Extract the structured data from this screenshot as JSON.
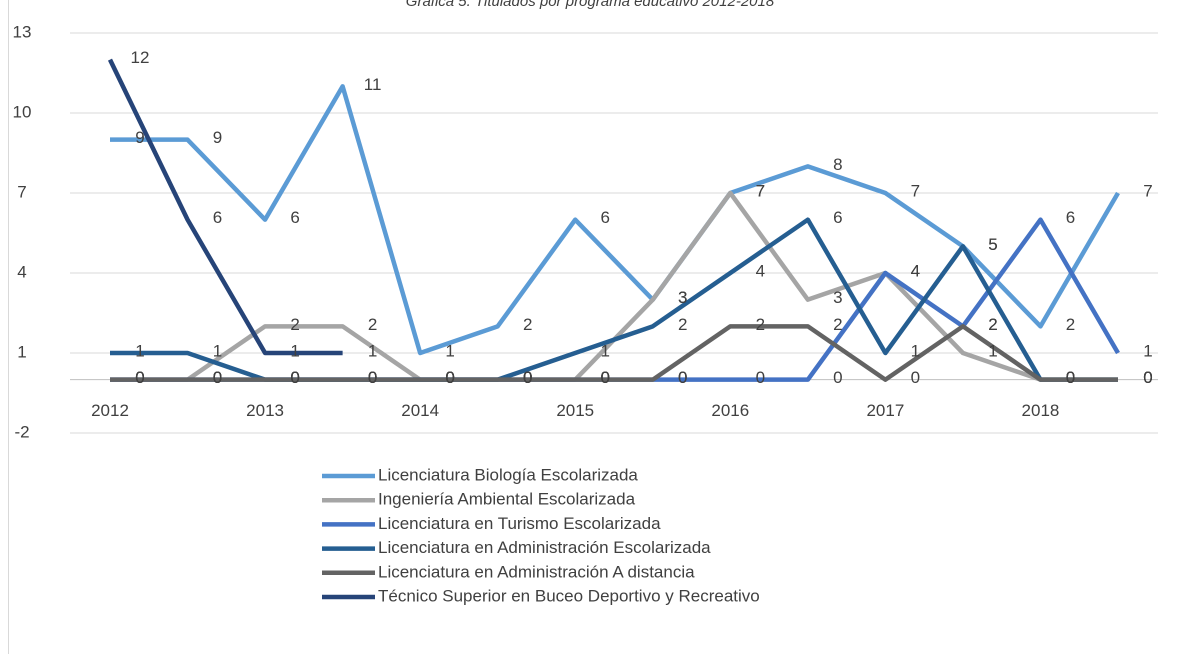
{
  "chart_data": {
    "type": "line",
    "title": "Gráfica 5.  Titulados por programa educativo 2012-2018",
    "categories": [
      "2012",
      null,
      "2013",
      null,
      "2014",
      null,
      "2015",
      null,
      "2016",
      null,
      "2017",
      null,
      "2018",
      null
    ],
    "ylim": [
      -2,
      13
    ],
    "yticks": [
      -2,
      1,
      4,
      7,
      10,
      13
    ],
    "grid": true,
    "legend": "bottom",
    "series": [
      {
        "name": "Licenciatura Biología  Escolarizada",
        "color": "#5b9bd5",
        "values": [
          9,
          9,
          6,
          11,
          1,
          2,
          6,
          3,
          7,
          8,
          7,
          5,
          2,
          7
        ]
      },
      {
        "name": "Ingeniería Ambiental  Escolarizada",
        "color": "#a5a5a5",
        "values": [
          0,
          0,
          2,
          2,
          0,
          0,
          0,
          3,
          7,
          3,
          4,
          1,
          0,
          0
        ]
      },
      {
        "name": "Licenciatura en Turismo  Escolarizada",
        "color": "#4472c4",
        "values": [
          0,
          0,
          0,
          0,
          0,
          0,
          0,
          0,
          0,
          0,
          4,
          2,
          6,
          1
        ]
      },
      {
        "name": "Licenciatura en Administración Escolarizada",
        "color": "#255e91",
        "values": [
          1,
          1,
          0,
          0,
          0,
          0,
          1,
          2,
          4,
          6,
          1,
          5,
          0,
          0
        ]
      },
      {
        "name": "Licenciatura en Administración A distancia",
        "color": "#636363",
        "values": [
          0,
          0,
          0,
          0,
          0,
          0,
          0,
          0,
          2,
          2,
          0,
          2,
          0,
          0
        ]
      },
      {
        "name": "Técnico Superior en Buceo Deportivo y Recreativo",
        "color": "#264478",
        "values": [
          12,
          6,
          1,
          1,
          null,
          null,
          null,
          null,
          null,
          null,
          null,
          null,
          null,
          null
        ]
      }
    ]
  }
}
